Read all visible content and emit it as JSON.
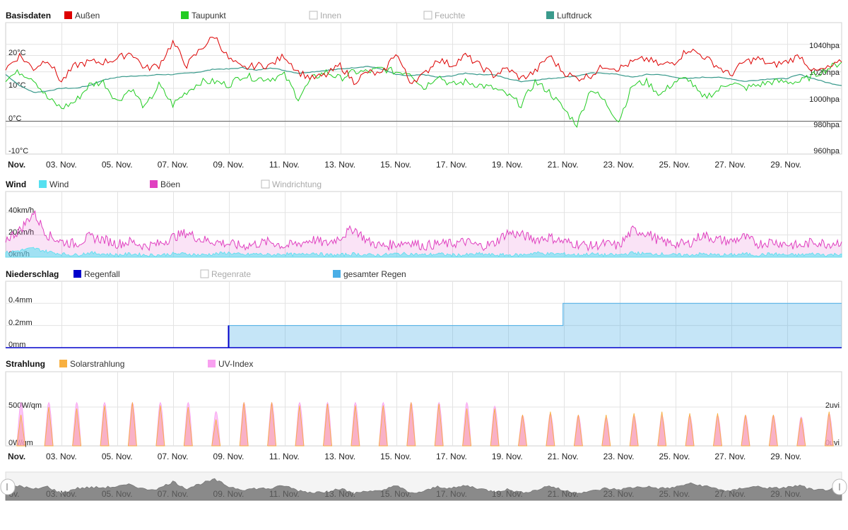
{
  "x_axis": {
    "start_label": "Nov.",
    "labels": [
      "03. Nov.",
      "05. Nov.",
      "07. Nov.",
      "09. Nov.",
      "11. Nov.",
      "13. Nov.",
      "15. Nov.",
      "17. Nov.",
      "19. Nov.",
      "21. Nov.",
      "23. Nov.",
      "25. Nov.",
      "27. Nov.",
      "29. Nov."
    ],
    "navigator_labels": [
      "ov.",
      "03. Nov.",
      "05. Nov.",
      "07. Nov.",
      "09. Nov.",
      "11. Nov.",
      "13. Nov.",
      "15. Nov.",
      "17. Nov.",
      "19. Nov.",
      "21. Nov.",
      "23. Nov.",
      "25. Nov.",
      "27. Nov.",
      "29. Nov."
    ]
  },
  "colors": {
    "aussen": "#dd0000",
    "taupunkt": "#22cc22",
    "luftdruck": "#3a9a8c",
    "wind": "#55e0f0",
    "boeen": "#e040c0",
    "regenfall": "#0000cc",
    "gesamter_regen": "#4aaee6",
    "solar": "#f8b040",
    "uv": "#f8a0f0"
  },
  "chart_data": [
    {
      "type": "line",
      "title": "Basisdaten",
      "series": [
        {
          "name": "Außen",
          "visible": true,
          "y": [
            16,
            20,
            16,
            19,
            12,
            17,
            18,
            18,
            19,
            21,
            16,
            17,
            24,
            17,
            22,
            26,
            19,
            16,
            17,
            17,
            20,
            15,
            13,
            14,
            17,
            12,
            15,
            14,
            21,
            12,
            14,
            19,
            17,
            20,
            17,
            14,
            16,
            13,
            15,
            20,
            15,
            13,
            14,
            17,
            16,
            18,
            19,
            17,
            18,
            22,
            20,
            17,
            14,
            18,
            19,
            17,
            18,
            20,
            15,
            16,
            18
          ]
        },
        {
          "name": "Taupunkt",
          "visible": true,
          "y": [
            13,
            15,
            13,
            7,
            4,
            6,
            11,
            12,
            6,
            10,
            4,
            11,
            5,
            9,
            12,
            12,
            11,
            14,
            13,
            13,
            14,
            7,
            13,
            15,
            13,
            15,
            15,
            16,
            15,
            15,
            10,
            14,
            11,
            12,
            11,
            10,
            8,
            5,
            12,
            9,
            4,
            -1,
            10,
            6,
            0,
            11,
            12,
            8,
            12,
            13,
            7,
            9,
            12,
            10,
            11,
            12,
            12,
            12,
            14,
            16,
            18
          ]
        },
        {
          "name": "Innen",
          "visible": false,
          "y": []
        },
        {
          "name": "Feuchte",
          "visible": false,
          "y": []
        },
        {
          "name": "Luftdruck",
          "visible": true,
          "y": [
            1018,
            1010,
            1005,
            1006,
            1008,
            1008,
            1010,
            1014,
            1016,
            1017,
            1017,
            1018,
            1018,
            1019,
            1020,
            1022,
            1022,
            1023,
            1021,
            1023,
            1021,
            1019,
            1020,
            1021,
            1022,
            1023,
            1024,
            1022,
            1018,
            1017,
            1018,
            1016,
            1017,
            1019,
            1018,
            1018,
            1015,
            1013,
            1014,
            1015,
            1016,
            1017,
            1019,
            1019,
            1018,
            1016,
            1018,
            1018,
            1016,
            1015,
            1016,
            1016,
            1015,
            1013,
            1014,
            1015,
            1015,
            1018,
            1015,
            1012,
            1010
          ]
        }
      ],
      "y_left": {
        "labels": [
          "20°C",
          "10°C",
          "0°C",
          "-10°C"
        ],
        "ylim": [
          -10,
          30
        ]
      },
      "y_right": {
        "labels": [
          "1040hpa",
          "1020hpa",
          "1000hpa",
          "980hpa",
          "960hpa"
        ],
        "ylim": [
          960,
          1040
        ]
      }
    },
    {
      "type": "area",
      "title": "Wind",
      "series": [
        {
          "name": "Wind",
          "visible": true,
          "y": [
            4,
            6,
            8,
            5,
            3,
            2,
            4,
            3,
            2,
            3,
            2,
            2,
            3,
            3,
            2,
            3,
            4,
            2,
            3,
            2,
            3,
            2,
            4,
            2,
            2,
            3,
            2,
            2,
            3,
            3,
            2,
            3,
            2,
            2,
            3,
            2,
            2,
            2,
            4,
            3,
            3,
            2,
            3,
            2,
            2,
            4,
            3,
            3,
            2,
            2,
            3,
            2,
            2,
            3,
            2,
            3,
            2,
            2,
            3,
            2,
            3
          ]
        },
        {
          "name": "Böen",
          "visible": true,
          "y": [
            16,
            24,
            40,
            20,
            14,
            12,
            18,
            16,
            12,
            14,
            10,
            12,
            18,
            22,
            16,
            14,
            12,
            10,
            12,
            14,
            10,
            12,
            16,
            12,
            18,
            26,
            14,
            10,
            12,
            14,
            10,
            12,
            12,
            14,
            10,
            12,
            22,
            20,
            16,
            18,
            14,
            12,
            10,
            12,
            10,
            24,
            22,
            14,
            12,
            12,
            20,
            16,
            14,
            18,
            12,
            14,
            12,
            10,
            14,
            12,
            14
          ]
        },
        {
          "name": "Windrichtung",
          "visible": false,
          "y": []
        }
      ],
      "y_left": {
        "labels": [
          "40km/h",
          "20km/h",
          "0km/h"
        ],
        "ylim": [
          0,
          45
        ]
      }
    },
    {
      "type": "area",
      "title": "Niederschlag",
      "series": [
        {
          "name": "Regenfall",
          "visible": true,
          "y": [
            0,
            0,
            0,
            0,
            0,
            0,
            0,
            0,
            0,
            0,
            0,
            0,
            0,
            0,
            0,
            0,
            0,
            0,
            0,
            0,
            0,
            0,
            0,
            0,
            0,
            0,
            0,
            0,
            0,
            0,
            0,
            0,
            0,
            0,
            0,
            0,
            0,
            0,
            0,
            0,
            0,
            0,
            0,
            0,
            0,
            0,
            0,
            0,
            0,
            0,
            0,
            0,
            0,
            0,
            0,
            0,
            0,
            0,
            0,
            0,
            0
          ]
        },
        {
          "name": "Regenrate",
          "visible": false,
          "y": []
        },
        {
          "name": "gesamter Regen",
          "visible": true,
          "y": [
            0,
            0,
            0,
            0,
            0,
            0,
            0,
            0,
            0,
            0,
            0,
            0,
            0,
            0,
            0,
            0,
            0.2,
            0.2,
            0.2,
            0.2,
            0.2,
            0.2,
            0.2,
            0.2,
            0.2,
            0.2,
            0.2,
            0.2,
            0.2,
            0.2,
            0.2,
            0.2,
            0.2,
            0.2,
            0.2,
            0.2,
            0.2,
            0.2,
            0.2,
            0.2,
            0.4,
            0.4,
            0.4,
            0.4,
            0.4,
            0.4,
            0.4,
            0.4,
            0.4,
            0.4,
            0.4,
            0.4,
            0.4,
            0.4,
            0.4,
            0.4,
            0.4,
            0.4,
            0.4,
            0.4,
            0.4
          ]
        }
      ],
      "y_left": {
        "labels": [
          "0.4mm",
          "0.2mm",
          "0mm"
        ],
        "ylim": [
          0,
          0.45
        ]
      }
    },
    {
      "type": "area",
      "title": "Strahlung",
      "series": [
        {
          "name": "Solarstrahlung",
          "visible": true,
          "daily_peaks": [
            400,
            500,
            480,
            520,
            560,
            520,
            500,
            340,
            560,
            560,
            520,
            540,
            520,
            520,
            560,
            540,
            480,
            480,
            400,
            440,
            400,
            400,
            420,
            440,
            420,
            420,
            400,
            400,
            360,
            440
          ]
        },
        {
          "name": "UV-Index",
          "visible": true,
          "daily_peaks": [
            2.4,
            2.4,
            2.4,
            2.4,
            2.4,
            2.4,
            2.4,
            1.9,
            2.4,
            2.4,
            2.4,
            2.4,
            2.4,
            2.4,
            2.4,
            2.4,
            2.4,
            2.2,
            1.7,
            1.8,
            1.7,
            1.6,
            1.7,
            1.7,
            1.7,
            1.7,
            1.7,
            1.7,
            1.6,
            1.8
          ]
        }
      ],
      "y_left": {
        "labels": [
          "500W/qm",
          "0W/qm"
        ],
        "ylim": [
          0,
          700
        ]
      },
      "y_right": {
        "labels": [
          "2uvi",
          "0uvi"
        ],
        "ylim": [
          0,
          3
        ]
      }
    }
  ]
}
